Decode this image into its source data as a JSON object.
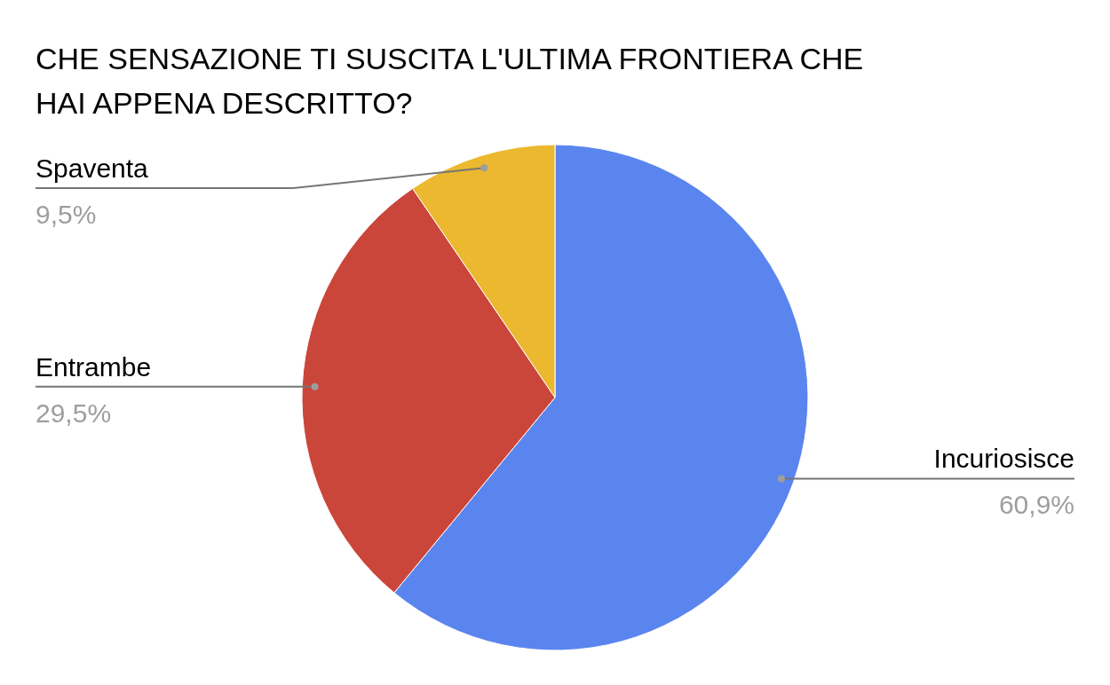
{
  "chart_data": {
    "type": "pie",
    "title": "CHE SENSAZIONE TI SUSCITA L'ULTIMA FRONTIERA CHE HAI APPENA DESCRITTO?",
    "categories": [
      "Incuriosisce",
      "Entrambe",
      "Spaventa"
    ],
    "values": [
      60.9,
      29.5,
      9.5
    ],
    "colors": [
      "#5b85ee",
      "#cb463a",
      "#ebb82f"
    ],
    "value_labels": [
      "60,9%",
      "29,5%",
      "9,5%"
    ],
    "legend": false
  }
}
